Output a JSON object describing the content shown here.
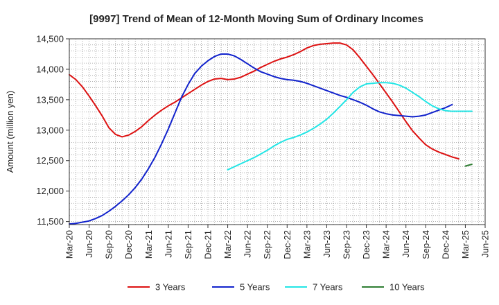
{
  "chart_data": {
    "type": "line",
    "title": "[9997]  Trend of Mean of 12-Month Moving Sum of Ordinary Incomes",
    "xlabel": "",
    "ylabel": "Amount (million yen)",
    "ylim": [
      11450,
      14500
    ],
    "yticks": [
      11500,
      12000,
      12500,
      13000,
      13500,
      14000,
      14500
    ],
    "ytick_labels": [
      "11,500",
      "12,000",
      "12,500",
      "13,000",
      "13,500",
      "14,000",
      "14,500"
    ],
    "xticks": [
      "Mar-20",
      "Jun-20",
      "Sep-20",
      "Dec-20",
      "Mar-21",
      "Jun-21",
      "Sep-21",
      "Dec-21",
      "Mar-22",
      "Jun-22",
      "Sep-22",
      "Dec-22",
      "Mar-23",
      "Jun-23",
      "Sep-23",
      "Dec-23",
      "Mar-24",
      "Jun-24",
      "Sep-24",
      "Dec-24",
      "Mar-25",
      "Jun-25"
    ],
    "grid": true,
    "legend_position": "bottom",
    "series": [
      {
        "name": "3 Years",
        "color": "#dd1111",
        "start_index": 0,
        "values": [
          13910,
          13830,
          13710,
          13560,
          13400,
          13230,
          13040,
          12930,
          12890,
          12920,
          12980,
          13060,
          13160,
          13250,
          13330,
          13400,
          13460,
          13530,
          13600,
          13670,
          13740,
          13800,
          13840,
          13850,
          13830,
          13840,
          13870,
          13920,
          13970,
          14030,
          14080,
          14130,
          14170,
          14200,
          14240,
          14290,
          14350,
          14390,
          14410,
          14420,
          14430,
          14430,
          14400,
          14320,
          14190,
          14050,
          13910,
          13760,
          13610,
          13460,
          13300,
          13140,
          12990,
          12870,
          12760,
          12690,
          12640,
          12600,
          12560,
          12530
        ]
      },
      {
        "name": "5 Years",
        "color": "#1122cc",
        "start_index": 0,
        "values": [
          11460,
          11470,
          11490,
          11510,
          11550,
          11600,
          11670,
          11750,
          11840,
          11940,
          12060,
          12200,
          12370,
          12560,
          12780,
          13020,
          13280,
          13540,
          13750,
          13930,
          14050,
          14140,
          14210,
          14250,
          14250,
          14220,
          14160,
          14090,
          14020,
          13960,
          13920,
          13880,
          13850,
          13830,
          13820,
          13800,
          13770,
          13730,
          13690,
          13650,
          13610,
          13570,
          13540,
          13500,
          13460,
          13410,
          13350,
          13300,
          13270,
          13250,
          13240,
          13230,
          13220,
          13230,
          13250,
          13290,
          13330,
          13370,
          13420
        ]
      },
      {
        "name": "7 Years",
        "color": "#22e5e5",
        "start_index": 24,
        "values": [
          12350,
          12400,
          12450,
          12500,
          12550,
          12610,
          12670,
          12740,
          12800,
          12850,
          12880,
          12920,
          12970,
          13030,
          13100,
          13180,
          13280,
          13390,
          13500,
          13620,
          13710,
          13760,
          13770,
          13780,
          13780,
          13770,
          13740,
          13690,
          13620,
          13550,
          13470,
          13400,
          13350,
          13320,
          13310,
          13310,
          13310,
          13310
        ]
      },
      {
        "name": "10 Years",
        "color": "#2e7d32",
        "start_index": 60,
        "values": [
          12410,
          12440
        ]
      }
    ]
  }
}
